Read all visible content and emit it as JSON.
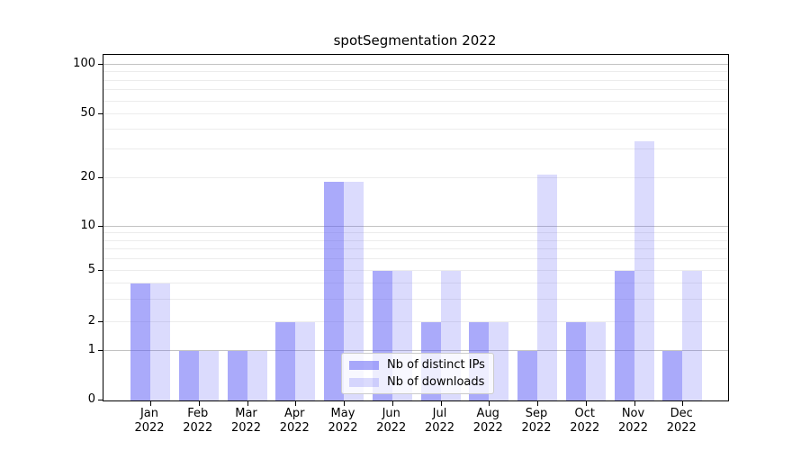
{
  "chart_data": {
    "type": "bar",
    "title": "spotSegmentation 2022",
    "categories": [
      "Jan",
      "Feb",
      "Mar",
      "Apr",
      "May",
      "Jun",
      "Jul",
      "Aug",
      "Sep",
      "Oct",
      "Nov",
      "Dec"
    ],
    "category_year": "2022",
    "series": [
      {
        "name": "Nb of distinct IPs",
        "color": "#5555f5",
        "alpha": 0.5,
        "solid_color": "#aaaaf9",
        "values": [
          4,
          1,
          1,
          2,
          19,
          5,
          2,
          2,
          1,
          2,
          5,
          1
        ]
      },
      {
        "name": "Nb of downloads",
        "color": "#5555f5",
        "alpha": 0.21,
        "solid_color": "#dbdafb",
        "values": [
          4,
          1,
          1,
          2,
          19,
          5,
          5,
          2,
          21,
          2,
          34,
          5
        ]
      }
    ],
    "xlabel": "",
    "ylabel": "",
    "yscale": "symlog",
    "ylim": [
      0,
      100
    ],
    "yticks": [
      0,
      1,
      2,
      5,
      10,
      20,
      50,
      100
    ],
    "major_gridlines": [
      1,
      10,
      100
    ],
    "minor_gridlines": [
      2,
      3,
      4,
      5,
      6,
      7,
      8,
      9,
      20,
      30,
      40,
      50,
      60,
      70,
      80,
      90
    ],
    "grid": true,
    "legend_position": "lower center"
  }
}
